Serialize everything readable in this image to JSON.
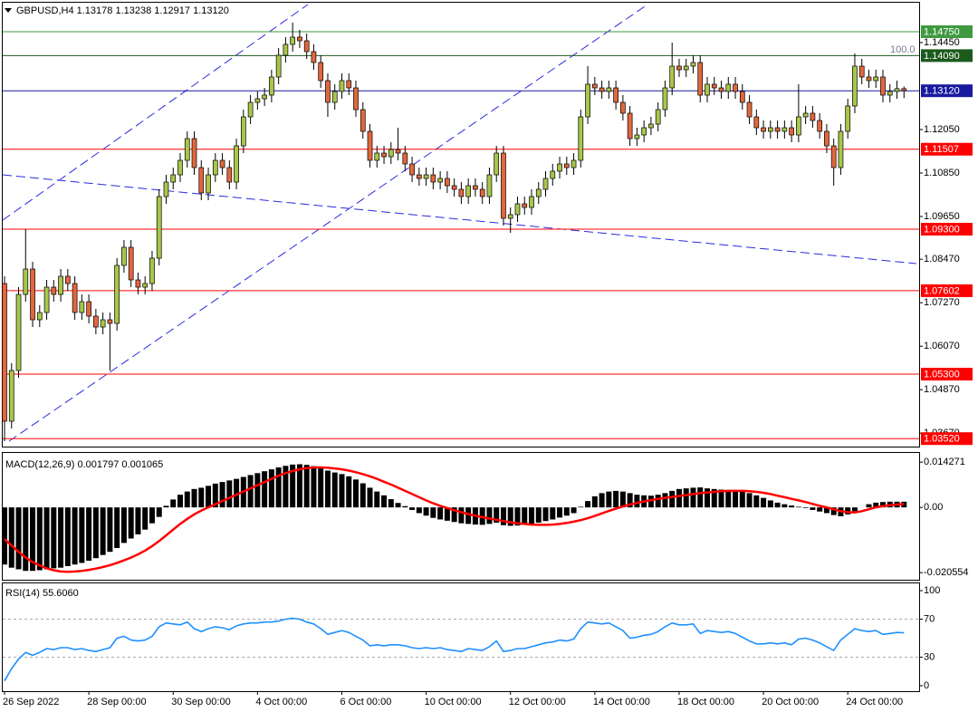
{
  "chart_data": [
    {
      "type": "candlestick",
      "title": "GBPUSD,H4 1.13178 1.13238 1.12917 1.13120",
      "categories": [
        "26 Sep 2022",
        null,
        null,
        null,
        null,
        null,
        null,
        null,
        null,
        null,
        null,
        null,
        "28 Sep 00:00",
        null,
        null,
        null,
        null,
        null,
        null,
        null,
        null,
        null,
        null,
        null,
        "30 Sep 00:00",
        null,
        null,
        null,
        null,
        null,
        null,
        null,
        null,
        null,
        null,
        null,
        "4 Oct 00:00",
        null,
        null,
        null,
        null,
        null,
        null,
        null,
        null,
        null,
        null,
        null,
        "6 Oct 00:00",
        null,
        null,
        null,
        null,
        null,
        null,
        null,
        null,
        null,
        null,
        null,
        "10 Oct 00:00",
        null,
        null,
        null,
        null,
        null,
        null,
        null,
        null,
        null,
        null,
        null,
        "12 Oct 00:00",
        null,
        null,
        null,
        null,
        null,
        null,
        null,
        null,
        null,
        null,
        null,
        "14 Oct 00:00",
        null,
        null,
        null,
        null,
        null,
        null,
        null,
        null,
        null,
        null,
        null,
        "18 Oct 00:00",
        null,
        null,
        null,
        null,
        null,
        null,
        null,
        null,
        null,
        null,
        null,
        "20 Oct 00:00",
        null,
        null,
        null,
        null,
        null,
        null,
        null,
        null,
        null,
        null,
        null,
        "24 Oct 00:00",
        null,
        null,
        null,
        null,
        null,
        null,
        null,
        null
      ],
      "open": [
        1.078,
        1.04,
        1.054,
        1.075,
        1.082,
        1.068,
        1.07,
        1.077,
        1.075,
        1.08,
        1.078,
        1.07,
        1.073,
        1.069,
        1.066,
        1.068,
        1.067,
        1.083,
        1.088,
        1.079,
        1.077,
        1.078,
        1.085,
        1.102,
        1.106,
        1.108,
        1.112,
        1.118,
        1.11,
        1.103,
        1.108,
        1.112,
        1.11,
        1.106,
        1.116,
        1.124,
        1.128,
        1.129,
        1.13,
        1.135,
        1.141,
        1.144,
        1.146,
        1.145,
        1.142,
        1.139,
        1.134,
        1.128,
        1.131,
        1.134,
        1.132,
        1.126,
        1.12,
        1.112,
        1.114,
        1.113,
        1.115,
        1.114,
        1.111,
        1.108,
        1.107,
        1.108,
        1.106,
        1.107,
        1.105,
        1.104,
        1.102,
        1.105,
        1.104,
        1.102,
        1.108,
        1.114,
        1.096,
        1.097,
        1.1,
        1.099,
        1.102,
        1.104,
        1.107,
        1.109,
        1.111,
        1.11,
        1.112,
        1.124,
        1.133,
        1.132,
        1.131,
        1.132,
        1.128,
        1.125,
        1.118,
        1.119,
        1.121,
        1.122,
        1.126,
        1.132,
        1.138,
        1.137,
        1.138,
        1.139,
        1.13,
        1.133,
        1.132,
        1.131,
        1.133,
        1.131,
        1.128,
        1.124,
        1.121,
        1.12,
        1.121,
        1.12,
        1.121,
        1.119,
        1.124,
        1.125,
        1.123,
        1.12,
        1.116,
        1.11,
        1.12,
        1.127,
        1.138,
        1.135,
        1.134,
        1.135,
        1.13,
        1.131,
        1.13178
      ],
      "high": [
        1.08,
        1.056,
        1.077,
        1.093,
        1.084,
        1.072,
        1.079,
        1.079,
        1.082,
        1.082,
        1.08,
        1.075,
        1.075,
        1.071,
        1.07,
        1.07,
        1.085,
        1.09,
        1.09,
        1.081,
        1.08,
        1.087,
        1.104,
        1.108,
        1.11,
        1.114,
        1.12,
        1.12,
        1.112,
        1.11,
        1.114,
        1.114,
        1.112,
        1.118,
        1.126,
        1.13,
        1.131,
        1.132,
        1.137,
        1.143,
        1.146,
        1.15,
        1.148,
        1.147,
        1.144,
        1.141,
        1.136,
        1.133,
        1.136,
        1.136,
        1.134,
        1.128,
        1.122,
        1.116,
        1.116,
        1.117,
        1.121,
        1.116,
        1.113,
        1.11,
        1.11,
        1.11,
        1.109,
        1.109,
        1.107,
        1.106,
        1.107,
        1.107,
        1.106,
        1.11,
        1.116,
        1.116,
        1.099,
        1.102,
        1.102,
        1.104,
        1.106,
        1.109,
        1.111,
        1.113,
        1.113,
        1.114,
        1.126,
        1.138,
        1.135,
        1.134,
        1.134,
        1.134,
        1.13,
        1.127,
        1.121,
        1.123,
        1.124,
        1.128,
        1.134,
        1.1445,
        1.14,
        1.14,
        1.141,
        1.141,
        1.135,
        1.135,
        1.134,
        1.135,
        1.135,
        1.133,
        1.13,
        1.126,
        1.123,
        1.123,
        1.123,
        1.123,
        1.123,
        1.133,
        1.127,
        1.127,
        1.125,
        1.122,
        1.118,
        1.122,
        1.129,
        1.1415,
        1.14,
        1.137,
        1.137,
        1.137,
        1.133,
        1.134,
        1.13238
      ],
      "low": [
        1.0345,
        1.038,
        1.052,
        1.073,
        1.066,
        1.066,
        1.068,
        1.073,
        1.073,
        1.076,
        1.068,
        1.068,
        1.067,
        1.064,
        1.064,
        1.054,
        1.065,
        1.081,
        1.077,
        1.075,
        1.075,
        1.076,
        1.083,
        1.1,
        1.104,
        1.106,
        1.11,
        1.108,
        1.101,
        1.101,
        1.106,
        1.108,
        1.104,
        1.104,
        1.114,
        1.122,
        1.126,
        1.127,
        1.128,
        1.133,
        1.139,
        1.142,
        1.143,
        1.14,
        1.137,
        1.132,
        1.124,
        1.126,
        1.129,
        1.13,
        1.124,
        1.118,
        1.11,
        1.11,
        1.111,
        1.111,
        1.112,
        1.109,
        1.106,
        1.105,
        1.105,
        1.104,
        1.104,
        1.103,
        1.102,
        1.1,
        1.1,
        1.102,
        1.1,
        1.1,
        1.106,
        1.094,
        1.092,
        1.095,
        1.097,
        1.097,
        1.1,
        1.102,
        1.105,
        1.107,
        1.108,
        1.108,
        1.11,
        1.122,
        1.13,
        1.129,
        1.129,
        1.126,
        1.123,
        1.116,
        1.116,
        1.117,
        1.119,
        1.12,
        1.124,
        1.13,
        1.135,
        1.135,
        1.136,
        1.128,
        1.128,
        1.13,
        1.129,
        1.129,
        1.129,
        1.126,
        1.122,
        1.119,
        1.118,
        1.118,
        1.118,
        1.118,
        1.117,
        1.117,
        1.122,
        1.121,
        1.118,
        1.114,
        1.105,
        1.108,
        1.118,
        1.125,
        1.133,
        1.132,
        1.132,
        1.128,
        1.128,
        1.129,
        1.12917
      ],
      "close": [
        1.04,
        1.054,
        1.075,
        1.082,
        1.068,
        1.07,
        1.077,
        1.075,
        1.08,
        1.078,
        1.07,
        1.073,
        1.069,
        1.066,
        1.068,
        1.067,
        1.083,
        1.088,
        1.079,
        1.077,
        1.078,
        1.085,
        1.102,
        1.106,
        1.108,
        1.112,
        1.118,
        1.11,
        1.103,
        1.108,
        1.112,
        1.11,
        1.106,
        1.116,
        1.124,
        1.128,
        1.129,
        1.13,
        1.135,
        1.141,
        1.144,
        1.146,
        1.145,
        1.142,
        1.139,
        1.134,
        1.128,
        1.131,
        1.134,
        1.132,
        1.126,
        1.12,
        1.112,
        1.114,
        1.113,
        1.115,
        1.114,
        1.111,
        1.108,
        1.107,
        1.108,
        1.106,
        1.107,
        1.105,
        1.104,
        1.102,
        1.105,
        1.104,
        1.102,
        1.108,
        1.114,
        1.096,
        1.097,
        1.1,
        1.099,
        1.102,
        1.104,
        1.107,
        1.109,
        1.111,
        1.11,
        1.112,
        1.124,
        1.133,
        1.132,
        1.131,
        1.132,
        1.128,
        1.125,
        1.118,
        1.119,
        1.121,
        1.122,
        1.126,
        1.132,
        1.138,
        1.137,
        1.138,
        1.139,
        1.13,
        1.133,
        1.132,
        1.131,
        1.133,
        1.131,
        1.128,
        1.124,
        1.121,
        1.12,
        1.121,
        1.12,
        1.121,
        1.119,
        1.124,
        1.125,
        1.123,
        1.12,
        1.116,
        1.11,
        1.12,
        1.127,
        1.138,
        1.135,
        1.134,
        1.135,
        1.13,
        1.131,
        1.13178,
        1.1312
      ],
      "up_color": "#a8c64a",
      "down_color": "#e2673d",
      "ylim": [
        1.03325,
        1.155
      ],
      "yticks": [
        {
          "value": 1.1445,
          "label": "1.14450"
        },
        {
          "value": 1.1205,
          "label": "1.12050"
        },
        {
          "value": 1.1085,
          "label": "1.10850"
        },
        {
          "value": 1.0965,
          "label": "1.09650"
        },
        {
          "value": 1.0847,
          "label": "1.08470"
        },
        {
          "value": 1.0727,
          "label": "1.07270"
        },
        {
          "value": 1.0607,
          "label": "1.06070"
        },
        {
          "value": 1.0487,
          "label": "1.04870"
        },
        {
          "value": 1.0367,
          "label": "1.03670"
        }
      ],
      "levels": [
        {
          "value": 1.1475,
          "label": "1.14750",
          "color": "#3f9a3f"
        },
        {
          "value": 1.1409,
          "label": "1.14090",
          "color": "#1d5a1d"
        },
        {
          "value": 1.1312,
          "label": "1.13120",
          "color": "#1a1aa0"
        },
        {
          "value": 1.11507,
          "label": "1.11507",
          "color": "#ff0000"
        },
        {
          "value": 1.093,
          "label": "1.09300",
          "color": "#ff0000"
        },
        {
          "value": 1.07602,
          "label": "1.07602",
          "color": "#ff0000"
        },
        {
          "value": 1.053,
          "label": "1.05300",
          "color": "#ff0000"
        },
        {
          "value": 1.0352,
          "label": "1.03520",
          "color": "#ff0000"
        }
      ],
      "annotation": "100.0"
    },
    {
      "type": "macd",
      "title": "MACD(12,26,9) 0.001797 0.001065",
      "ylim": [
        -0.0228,
        0.0166
      ],
      "yticks": [
        0.014271,
        {
          "value": 0,
          "label": "0.00"
        },
        -0.020554
      ],
      "histogram": {
        "color": "#000000",
        "values": [
          -0.018,
          -0.019,
          -0.0195,
          -0.02,
          -0.02,
          -0.0198,
          -0.0195,
          -0.0192,
          -0.019,
          -0.0185,
          -0.018,
          -0.0175,
          -0.0168,
          -0.016,
          -0.015,
          -0.014,
          -0.0128,
          -0.0112,
          -0.0098,
          -0.0085,
          -0.007,
          -0.005,
          -0.003,
          0.0005,
          0.0025,
          0.004,
          0.005,
          0.0058,
          0.0062,
          0.0068,
          0.0075,
          0.008,
          0.0085,
          0.009,
          0.0096,
          0.0102,
          0.0108,
          0.0114,
          0.012,
          0.0126,
          0.0131,
          0.0135,
          0.0136,
          0.0134,
          0.013,
          0.0124,
          0.0116,
          0.011,
          0.0105,
          0.0098,
          0.0088,
          0.0076,
          0.0062,
          0.005,
          0.0038,
          0.0026,
          0.0014,
          0.0004,
          -0.0008,
          -0.0018,
          -0.0026,
          -0.0033,
          -0.0038,
          -0.0042,
          -0.0046,
          -0.005,
          -0.0052,
          -0.0054,
          -0.0055,
          -0.0052,
          -0.0048,
          -0.0056,
          -0.0058,
          -0.0057,
          -0.0055,
          -0.0052,
          -0.0048,
          -0.0043,
          -0.0038,
          -0.0032,
          -0.0026,
          -0.0018,
          0.0002,
          0.002,
          0.0035,
          0.0045,
          0.005,
          0.0052,
          0.005,
          0.0045,
          0.004,
          0.0038,
          0.0037,
          0.004,
          0.0045,
          0.0052,
          0.0058,
          0.006,
          0.0062,
          0.0063,
          0.006,
          0.0058,
          0.0056,
          0.0055,
          0.0053,
          0.005,
          0.0045,
          0.0038,
          0.003,
          0.0022,
          0.0015,
          0.001,
          0.0006,
          0.0002,
          -0.0002,
          -0.0008,
          -0.0013,
          -0.0018,
          -0.0024,
          -0.0028,
          -0.0022,
          -0.0012,
          0.0,
          0.001,
          0.0015,
          0.0017,
          0.0018,
          0.0018,
          0.001797
        ]
      },
      "signal": {
        "color": "#ff0000",
        "values": [
          -0.01,
          -0.012,
          -0.014,
          -0.0158,
          -0.0172,
          -0.0183,
          -0.0192,
          -0.0198,
          -0.0202,
          -0.0203,
          -0.0202,
          -0.02,
          -0.0197,
          -0.0193,
          -0.0188,
          -0.0182,
          -0.0175,
          -0.0167,
          -0.0158,
          -0.0148,
          -0.0136,
          -0.0122,
          -0.0106,
          -0.0088,
          -0.007,
          -0.0052,
          -0.0036,
          -0.0022,
          -0.001,
          0.0,
          0.001,
          0.002,
          0.003,
          0.004,
          0.005,
          0.006,
          0.007,
          0.008,
          0.009,
          0.01,
          0.0108,
          0.0115,
          0.012,
          0.0124,
          0.0126,
          0.0126,
          0.0125,
          0.0123,
          0.012,
          0.0116,
          0.0111,
          0.0105,
          0.0098,
          0.009,
          0.0081,
          0.0072,
          0.0062,
          0.0052,
          0.0042,
          0.0032,
          0.0022,
          0.0013,
          0.0005,
          -0.0002,
          -0.0009,
          -0.0015,
          -0.0021,
          -0.0026,
          -0.0031,
          -0.0035,
          -0.0039,
          -0.0043,
          -0.0047,
          -0.005,
          -0.0052,
          -0.0054,
          -0.0055,
          -0.0055,
          -0.0054,
          -0.0052,
          -0.0049,
          -0.0045,
          -0.004,
          -0.0034,
          -0.0027,
          -0.0019,
          -0.0011,
          -0.0004,
          0.0003,
          0.0009,
          0.0014,
          0.0019,
          0.0023,
          0.0027,
          0.003,
          0.0033,
          0.0036,
          0.0039,
          0.0042,
          0.0045,
          0.0047,
          0.0049,
          0.0051,
          0.0052,
          0.0052,
          0.0052,
          0.0051,
          0.0049,
          0.0046,
          0.0042,
          0.0037,
          0.0032,
          0.0027,
          0.0022,
          0.0017,
          0.0011,
          0.0005,
          0.0,
          -0.0006,
          -0.0012,
          -0.0015,
          -0.0016,
          -0.0012,
          -0.0006,
          0.0,
          0.0004,
          0.0007,
          0.0009,
          0.001065
        ]
      }
    },
    {
      "type": "line",
      "title": "RSI(14) 55.6060",
      "color": "#1e90ff",
      "ylim": [
        -4.8,
        106.7
      ],
      "yticks": [
        100,
        70,
        30,
        0
      ],
      "levels": [
        70,
        30
      ],
      "values": [
        5,
        18,
        28,
        35,
        32,
        35,
        39,
        38,
        40,
        40,
        38,
        39,
        37,
        36,
        38,
        40,
        50,
        52,
        48,
        47,
        48,
        52,
        62,
        66,
        65,
        64,
        67,
        60,
        57,
        60,
        62,
        61,
        59,
        63,
        65,
        66,
        66,
        67,
        67,
        68,
        70,
        71,
        70,
        67,
        65,
        60,
        54,
        56,
        58,
        56,
        52,
        48,
        42,
        43,
        42,
        43,
        43,
        42,
        40,
        39,
        40,
        39,
        40,
        38,
        37,
        36,
        39,
        38,
        37,
        41,
        47,
        36,
        37,
        39,
        39,
        41,
        43,
        45,
        46,
        48,
        47,
        49,
        60,
        67,
        66,
        65,
        66,
        62,
        58,
        50,
        51,
        53,
        54,
        57,
        62,
        66,
        64,
        64,
        65,
        55,
        58,
        57,
        56,
        57,
        55,
        51,
        47,
        44,
        44,
        45,
        44,
        45,
        43,
        49,
        50,
        48,
        45,
        41,
        37,
        48,
        54,
        60,
        58,
        57,
        58,
        54,
        55,
        56,
        55.606
      ]
    }
  ]
}
